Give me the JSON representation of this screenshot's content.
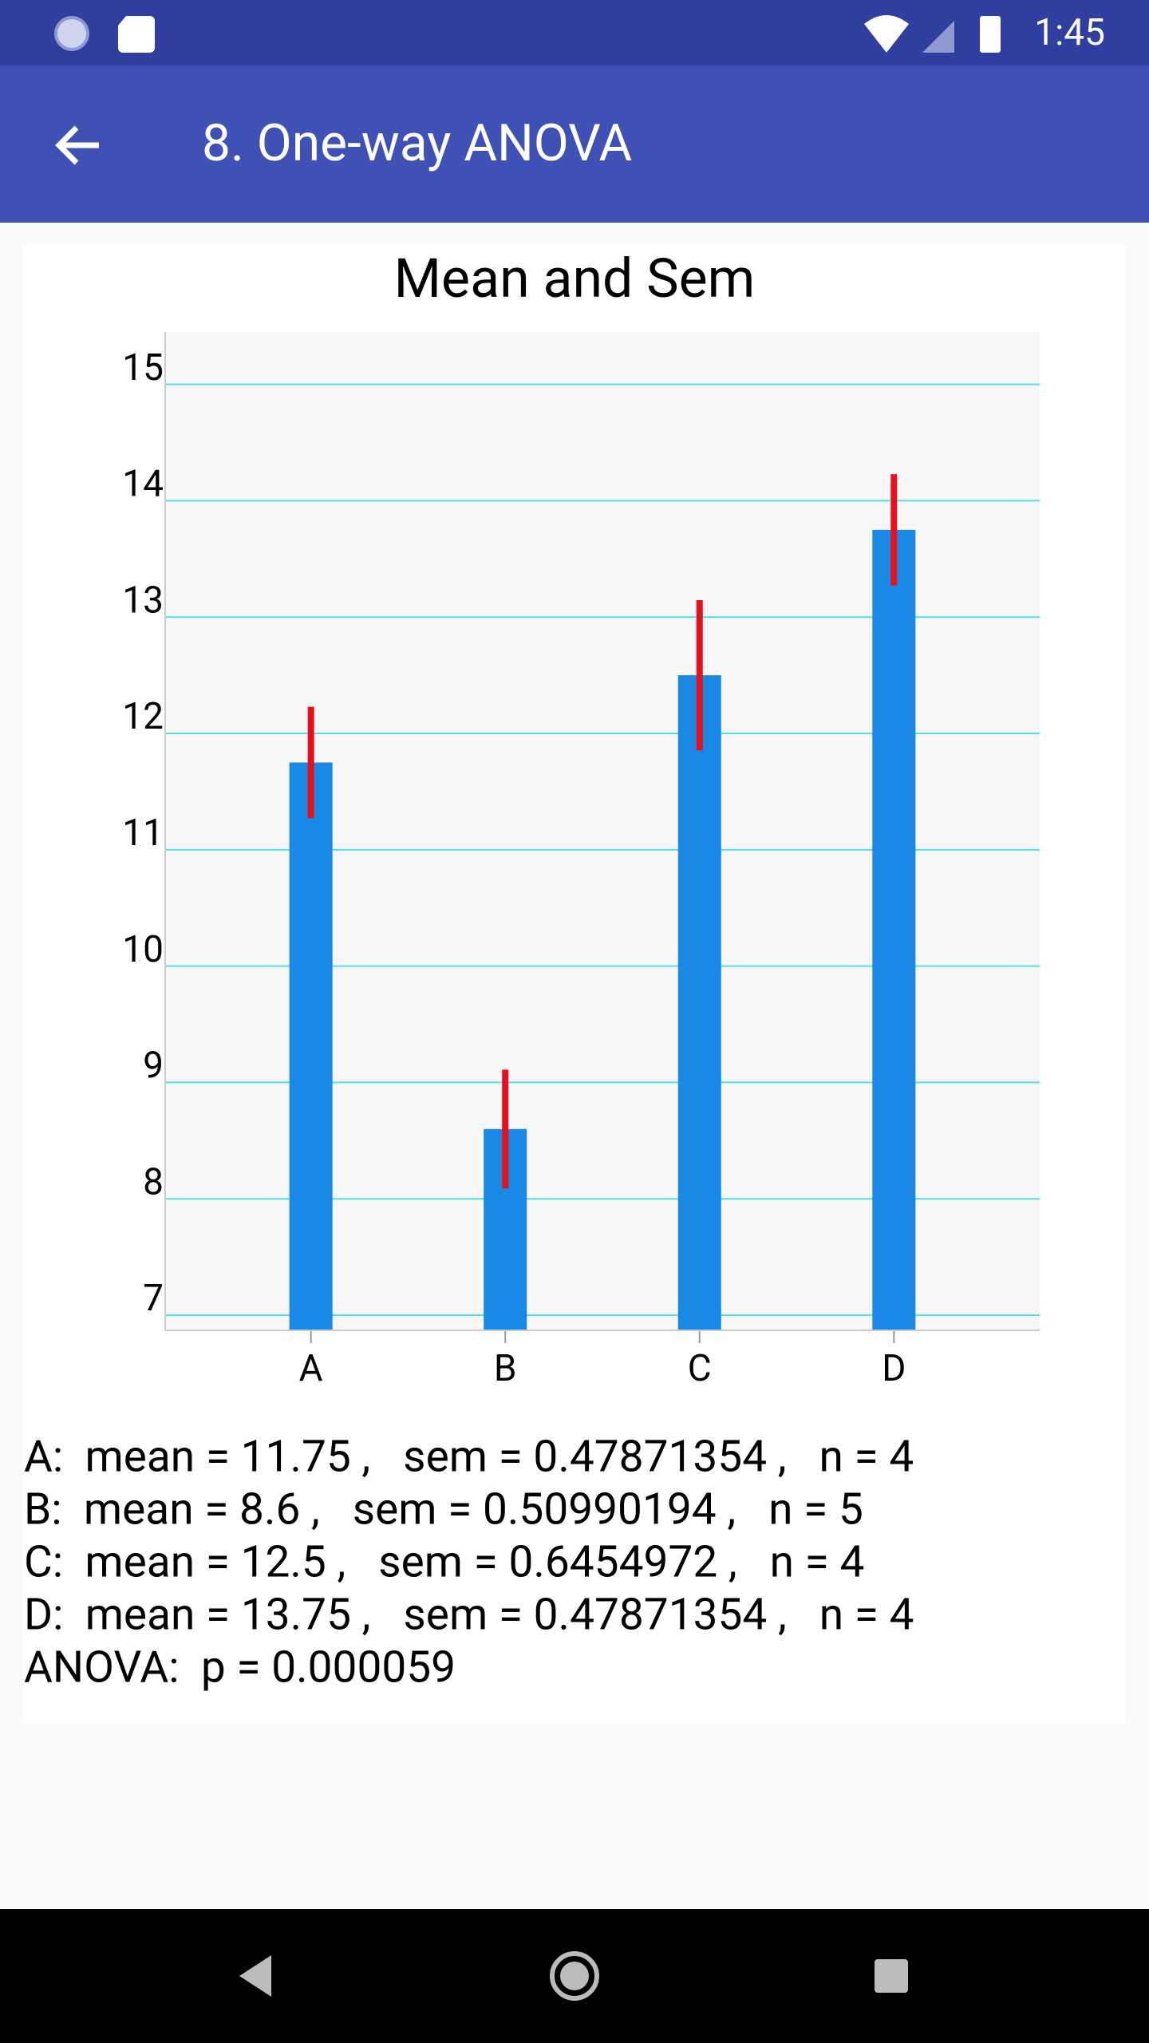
{
  "status_bar": {
    "time": "1:45"
  },
  "app_bar": {
    "title": "8. One-way ANOVA"
  },
  "chart_data": {
    "type": "bar",
    "title": "Mean and Sem",
    "categories": [
      "A",
      "B",
      "C",
      "D"
    ],
    "values": [
      11.75,
      8.6,
      12.5,
      13.75
    ],
    "errors": [
      0.47871354,
      0.50990194,
      0.6454972,
      0.47871354
    ],
    "color": "#1a88e5",
    "error_color": "#e8101c",
    "ylim": [
      6.87,
      15.45
    ],
    "yticks": [
      7,
      8,
      9,
      10,
      11,
      12,
      13,
      14,
      15
    ],
    "grid": true
  },
  "stats": {
    "lines": [
      "A:  mean = 11.75 ,   sem = 0.47871354 ,   n = 4",
      "B:  mean = 8.6 ,   sem = 0.50990194 ,   n = 5",
      "C:  mean = 12.5 ,   sem = 0.6454972 ,   n = 4",
      "D:  mean = 13.75 ,   sem = 0.47871354 ,   n = 4",
      "ANOVA:  p = 0.000059"
    ]
  }
}
